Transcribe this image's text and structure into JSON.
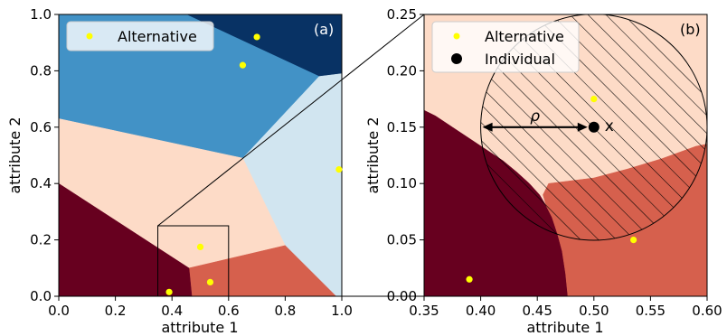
{
  "chart_data": [
    {
      "type": "region-map",
      "panel_tag": "(a)",
      "xlabel": "attribute 1",
      "ylabel": "attribute 2",
      "xlim": [
        0.0,
        1.0
      ],
      "ylim": [
        0.0,
        1.0
      ],
      "xticks": [
        "0.0",
        "0.2",
        "0.4",
        "0.6",
        "0.8",
        "1.0"
      ],
      "yticks": [
        "0.0",
        "0.2",
        "0.4",
        "0.6",
        "0.8",
        "1.0"
      ],
      "legend": [
        {
          "label": "Alternative",
          "marker": "dot",
          "color": "#ffff00"
        }
      ],
      "legend_loc": "upper-left",
      "regions": [
        {
          "color": "#083264",
          "polygon": [
            [
              0.45,
              1.0
            ],
            [
              1.0,
              1.0
            ],
            [
              1.0,
              0.79
            ],
            [
              0.92,
              0.78
            ],
            [
              0.45,
              1.0
            ]
          ]
        },
        {
          "color": "#4292c6",
          "polygon": [
            [
              0.0,
              1.0
            ],
            [
              0.45,
              1.0
            ],
            [
              0.92,
              0.78
            ],
            [
              0.65,
              0.49
            ],
            [
              0.0,
              0.63
            ]
          ]
        },
        {
          "color": "#d1e5f0",
          "polygon": [
            [
              0.65,
              0.49
            ],
            [
              0.92,
              0.78
            ],
            [
              1.0,
              0.79
            ],
            [
              1.0,
              0.0
            ],
            [
              0.98,
              0.0
            ],
            [
              0.8,
              0.18
            ]
          ]
        },
        {
          "color": "#fddbc7",
          "polygon": [
            [
              0.0,
              0.63
            ],
            [
              0.65,
              0.49
            ],
            [
              0.8,
              0.18
            ],
            [
              0.46,
              0.1
            ],
            [
              0.0,
              0.4
            ]
          ]
        },
        {
          "color": "#d6604d",
          "polygon": [
            [
              0.46,
              0.1
            ],
            [
              0.8,
              0.18
            ],
            [
              0.98,
              0.0
            ],
            [
              0.47,
              0.0
            ]
          ]
        },
        {
          "color": "#67001f",
          "polygon": [
            [
              0.0,
              0.4
            ],
            [
              0.46,
              0.1
            ],
            [
              0.47,
              0.0
            ],
            [
              0.0,
              0.0
            ]
          ]
        }
      ],
      "points": [
        {
          "x": 0.7,
          "y": 0.92
        },
        {
          "x": 0.65,
          "y": 0.82
        },
        {
          "x": 0.99,
          "y": 0.45
        },
        {
          "x": 0.5,
          "y": 0.175
        },
        {
          "x": 0.535,
          "y": 0.05
        },
        {
          "x": 0.39,
          "y": 0.015
        }
      ],
      "zoom_box": {
        "x": [
          0.35,
          0.6
        ],
        "y": [
          0.0,
          0.25
        ]
      }
    },
    {
      "type": "region-map",
      "panel_tag": "(b)",
      "xlabel": "attribute 1",
      "ylabel": "attribute 2",
      "xlim": [
        0.35,
        0.6
      ],
      "ylim": [
        0.0,
        0.25
      ],
      "xticks": [
        "0.35",
        "0.40",
        "0.45",
        "0.50",
        "0.55",
        "0.60"
      ],
      "yticks": [
        "0.00",
        "0.05",
        "0.10",
        "0.15",
        "0.20",
        "0.25"
      ],
      "legend": [
        {
          "label": "Alternative",
          "marker": "dot",
          "color": "#ffff00"
        },
        {
          "label": "Individual",
          "marker": "dot",
          "color": "#000000"
        }
      ],
      "legend_loc": "upper-left",
      "regions": [
        {
          "color": "#fddbc7",
          "polygon": [
            [
              0.35,
              0.25
            ],
            [
              0.6,
              0.25
            ],
            [
              0.6,
              0.0
            ],
            [
              0.35,
              0.0
            ]
          ]
        },
        {
          "color": "#67001f",
          "polygon": [
            [
              0.35,
              0.0
            ],
            [
              0.35,
              0.165
            ],
            [
              0.36,
              0.16
            ],
            [
              0.375,
              0.15
            ],
            [
              0.39,
              0.14
            ],
            [
              0.405,
              0.13
            ],
            [
              0.42,
              0.12
            ],
            [
              0.432,
              0.11
            ],
            [
              0.443,
              0.1
            ],
            [
              0.452,
              0.09
            ],
            [
              0.458,
              0.08
            ],
            [
              0.463,
              0.07
            ],
            [
              0.468,
              0.055
            ],
            [
              0.472,
              0.04
            ],
            [
              0.475,
              0.02
            ],
            [
              0.477,
              0.0
            ]
          ]
        },
        {
          "color": "#d6604d",
          "polygon": [
            [
              0.477,
              0.0
            ],
            [
              0.475,
              0.02
            ],
            [
              0.472,
              0.04
            ],
            [
              0.468,
              0.055
            ],
            [
              0.463,
              0.07
            ],
            [
              0.458,
              0.08
            ],
            [
              0.455,
              0.09
            ],
            [
              0.46,
              0.1
            ],
            [
              0.5,
              0.105
            ],
            [
              0.53,
              0.113
            ],
            [
              0.56,
              0.122
            ],
            [
              0.59,
              0.133
            ],
            [
              0.6,
              0.135
            ],
            [
              0.6,
              0.0
            ]
          ]
        }
      ],
      "points": [
        {
          "x": 0.5,
          "y": 0.175
        },
        {
          "x": 0.535,
          "y": 0.05
        },
        {
          "x": 0.39,
          "y": 0.015
        }
      ],
      "individual": {
        "x": 0.5,
        "y": 0.15,
        "label": "x"
      },
      "circle": {
        "cx": 0.5,
        "cy": 0.15,
        "r": 0.1,
        "hatch": "diagonal"
      },
      "rho_label": "ρ"
    }
  ]
}
